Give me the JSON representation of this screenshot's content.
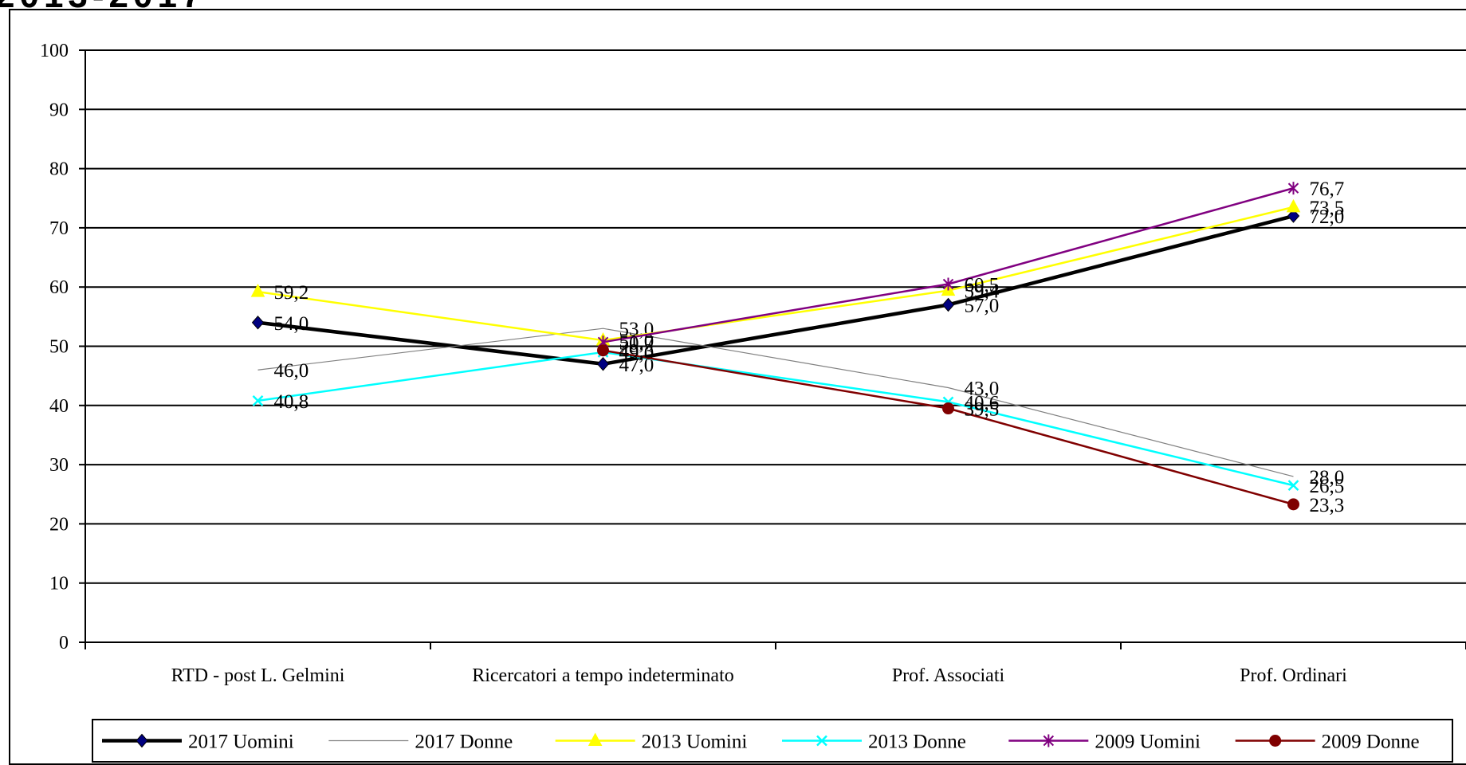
{
  "chart_data": {
    "type": "line",
    "title": "",
    "xlabel": "",
    "ylabel": "",
    "ylim": [
      0,
      100
    ],
    "yticks": [
      "0",
      "10",
      "20",
      "30",
      "40",
      "50",
      "60",
      "70",
      "80",
      "90",
      "100"
    ],
    "grid": true,
    "legend_position": "bottom",
    "categories": [
      "RTD - post L. Gelmini",
      "Ricercatori a tempo indeterminato",
      "Prof. Associati",
      "Prof. Ordinari"
    ],
    "series": [
      {
        "name": "2017 Uomini",
        "color": "#000000",
        "marker": "diamond",
        "width": 4.5,
        "values": [
          54.0,
          47.0,
          57.0,
          72.0
        ],
        "labels": [
          "54,0",
          "47,0",
          "57,0",
          "72,0"
        ]
      },
      {
        "name": "2017 Donne",
        "color": "#808080",
        "marker": "none",
        "width": 1.2,
        "values": [
          46.0,
          53.0,
          43.0,
          28.0
        ],
        "labels": [
          "46,0",
          "53,0",
          "43,0",
          "28,0"
        ]
      },
      {
        "name": "2013 Uomini",
        "color": "#ffff00",
        "marker": "triangle",
        "width": 2.5,
        "values": [
          59.2,
          51.0,
          59.4,
          73.5
        ],
        "labels": [
          "59,2",
          "51,0",
          "59,4",
          "73,5"
        ]
      },
      {
        "name": "2013 Donne",
        "color": "#00ffff",
        "marker": "x",
        "width": 2.5,
        "values": [
          40.8,
          49.0,
          40.6,
          26.5
        ],
        "labels": [
          "40,8",
          "49,0",
          "40,6",
          "26,5"
        ]
      },
      {
        "name": "2009 Uomini",
        "color": "#800080",
        "marker": "star",
        "width": 2.5,
        "values": [
          null,
          50.7,
          60.5,
          76.7
        ],
        "labels": [
          "",
          "50,7",
          "60,5",
          "76,7"
        ]
      },
      {
        "name": "2009 Donne",
        "color": "#800000",
        "marker": "circle",
        "width": 2.5,
        "values": [
          null,
          49.3,
          39.5,
          23.3
        ],
        "labels": [
          "",
          "49,3",
          "39,5",
          "23,3"
        ]
      }
    ]
  }
}
